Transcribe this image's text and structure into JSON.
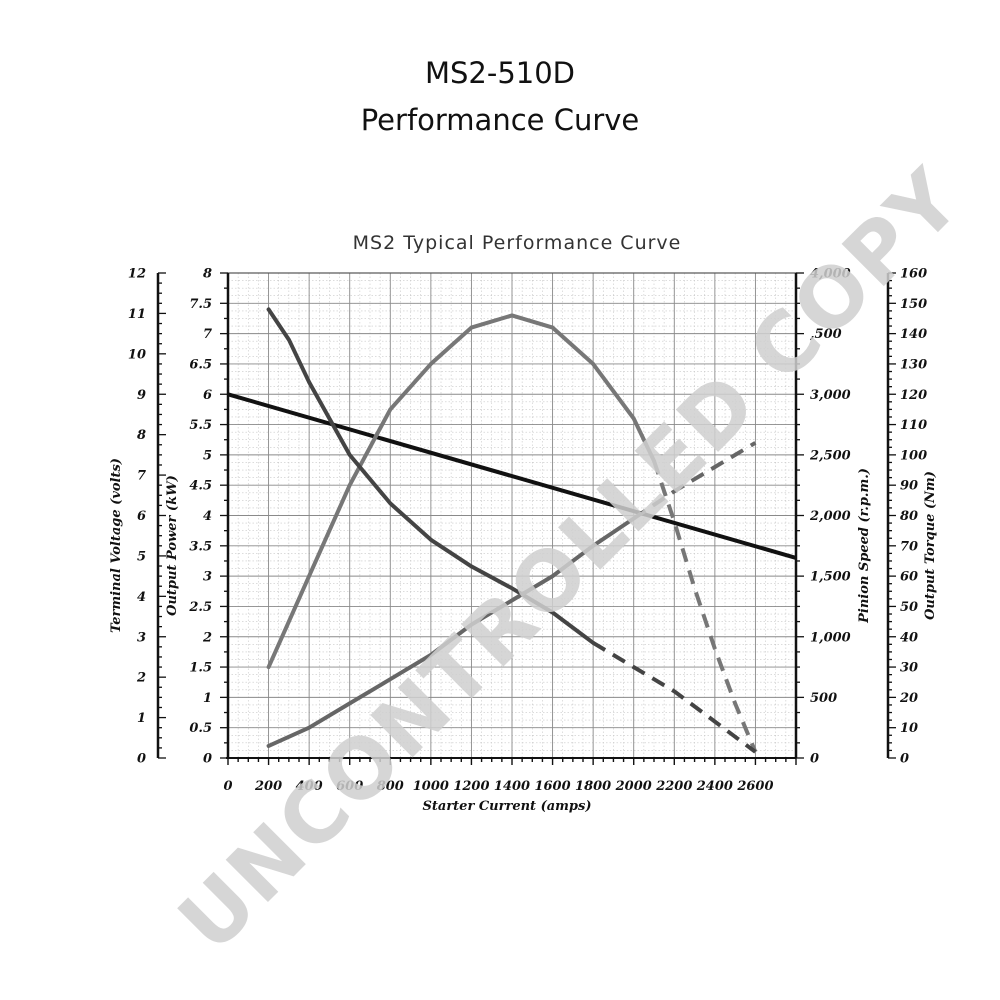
{
  "header": {
    "title_line1": "MS2-510D",
    "title_line2": "Performance Curve"
  },
  "watermark": "UNCONTROLLED COPY",
  "chart_data": {
    "type": "line",
    "title": "MS2 Typical Performance Curve",
    "xlabel": "Starter Current  (amps)",
    "xlim": [
      0,
      2800
    ],
    "x_ticks": [
      "0",
      "200",
      "400",
      "600",
      "800",
      "1000",
      "1200",
      "1400",
      "1600",
      "1800",
      "2000",
      "2200",
      "2400",
      "2600"
    ],
    "axes": {
      "terminal_voltage": {
        "label": "Terminal Voltage (volts)",
        "range": [
          0,
          12
        ],
        "ticks": [
          "0",
          "1",
          "2",
          "3",
          "4",
          "5",
          "6",
          "7",
          "8",
          "9",
          "10",
          "11",
          "12"
        ]
      },
      "output_power": {
        "label": "Output Power (kW)",
        "range": [
          0,
          8
        ],
        "ticks": [
          "0",
          "0.5",
          "1",
          "1.5",
          "2",
          "2.5",
          "3",
          "3.5",
          "4",
          "4.5",
          "5",
          "5.5",
          "6",
          "6.5",
          "7",
          "7.5",
          "8"
        ]
      },
      "pinion_speed": {
        "label": "Pinion Speed (r.p.m.)",
        "range": [
          0,
          4000
        ],
        "ticks": [
          "0",
          "500",
          "1,000",
          "1,500",
          "2,000",
          "2,500",
          "3,000",
          ",500",
          "4,000"
        ]
      },
      "output_torque": {
        "label": "Output Torque (Nm)",
        "range": [
          0,
          160
        ],
        "ticks": [
          "0",
          "10",
          "20",
          "30",
          "40",
          "50",
          "60",
          "70",
          "80",
          "90",
          "100",
          "110",
          "120",
          "130",
          "140",
          "150",
          "160"
        ]
      }
    },
    "series": [
      {
        "axis": "terminal_voltage",
        "color": "#111111",
        "points": [
          [
            0,
            9
          ],
          [
            2800,
            4.95
          ]
        ]
      },
      {
        "axis": "output_power",
        "color": "#777777",
        "points": [
          [
            200,
            1.5
          ],
          [
            400,
            3.0
          ],
          [
            600,
            4.5
          ],
          [
            800,
            5.75
          ],
          [
            1000,
            6.5
          ],
          [
            1200,
            7.1
          ],
          [
            1400,
            7.3
          ],
          [
            1600,
            7.1
          ],
          [
            1800,
            6.5
          ],
          [
            2000,
            5.6
          ],
          [
            2100,
            4.9
          ],
          [
            2200,
            3.9
          ],
          [
            2300,
            2.8
          ],
          [
            2400,
            1.8
          ],
          [
            2500,
            0.9
          ],
          [
            2600,
            0.1
          ]
        ],
        "dashed_from": 2100
      },
      {
        "axis": "pinion_speed",
        "color": "#444444",
        "points": [
          [
            200,
            3700
          ],
          [
            300,
            3450
          ],
          [
            400,
            3100
          ],
          [
            500,
            2800
          ],
          [
            600,
            2500
          ],
          [
            800,
            2100
          ],
          [
            1000,
            1800
          ],
          [
            1200,
            1580
          ],
          [
            1400,
            1400
          ],
          [
            1600,
            1200
          ],
          [
            1800,
            950
          ],
          [
            2000,
            750
          ],
          [
            2200,
            550
          ],
          [
            2400,
            300
          ],
          [
            2600,
            50
          ]
        ],
        "dashed_from": 1800
      },
      {
        "axis": "output_torque",
        "color": "#666666",
        "points": [
          [
            200,
            4
          ],
          [
            400,
            10
          ],
          [
            600,
            18
          ],
          [
            800,
            26
          ],
          [
            1000,
            34
          ],
          [
            1200,
            44
          ],
          [
            1400,
            52
          ],
          [
            1600,
            60
          ],
          [
            1800,
            70
          ],
          [
            2000,
            79
          ],
          [
            2200,
            88
          ],
          [
            2400,
            96
          ],
          [
            2600,
            104
          ]
        ],
        "dashed_from": 2000
      }
    ],
    "grid": true
  }
}
